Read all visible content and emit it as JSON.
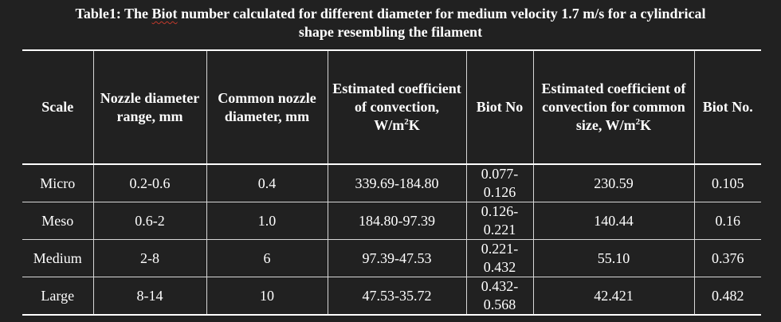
{
  "caption": {
    "prefix": "Table1: The ",
    "flagged_word": "Biot",
    "line1_rest": " number calculated for different diameter for medium velocity 1.7 m/s for a cylindrical",
    "line2": "shape resembling the filament"
  },
  "table": {
    "headers": [
      "Scale",
      "Nozzle diameter range, mm",
      "Common nozzle diameter, mm",
      "Estimated coefficient of convection, W/m²K",
      "Biot No",
      "Estimated coefficient of convection for common size, W/m²K",
      "Biot No."
    ],
    "rows": [
      [
        "Micro",
        "0.2-0.6",
        "0.4",
        "339.69-184.80",
        "0.077-0.126",
        "230.59",
        "0.105"
      ],
      [
        "Meso",
        "0.6-2",
        "1.0",
        "184.80-97.39",
        "0.126-0.221",
        "140.44",
        "0.16"
      ],
      [
        "Medium",
        "2-8",
        "6",
        "97.39-47.53",
        "0.221-0.432",
        "55.10",
        "0.376"
      ],
      [
        "Large",
        "8-14",
        "10",
        "47.53-35.72",
        "0.432-0.568",
        "42.421",
        "0.482"
      ]
    ]
  }
}
